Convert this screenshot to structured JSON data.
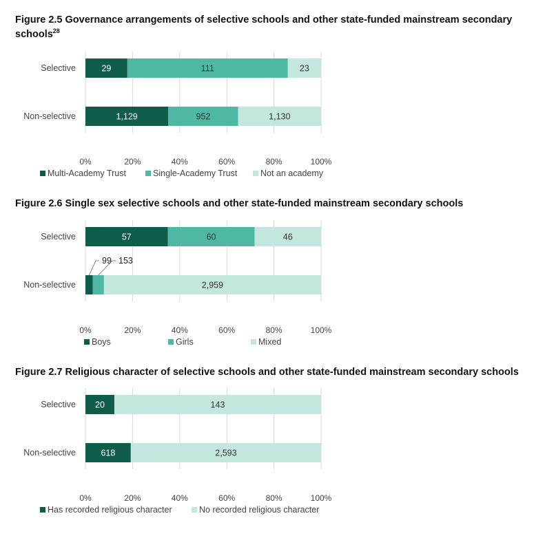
{
  "colors": {
    "dark": "#0f5c4b",
    "mid": "#4fb8a4",
    "light": "#c3e6df"
  },
  "figures": [
    {
      "title": "Figure 2.5 Governance arrangements of selective schools and other state-funded mainstream secondary schools",
      "title_sup": "28"
    },
    {
      "title": "Figure 2.6 Single sex selective schools and other state-funded mainstream secondary schools"
    },
    {
      "title": "Figure 2.7 Religious character of selective schools and other state-funded mainstream secondary schools"
    }
  ],
  "chart_data": [
    {
      "type": "bar",
      "orientation": "horizontal",
      "stacked": "percent",
      "categories": [
        "Selective",
        "Non-selective"
      ],
      "series": [
        {
          "name": "Multi-Academy Trust",
          "values": [
            29,
            1129
          ],
          "labels": [
            "29",
            "1,129"
          ],
          "color": "#0f5c4b"
        },
        {
          "name": "Single-Academy Trust",
          "values": [
            111,
            952
          ],
          "labels": [
            "111",
            "952"
          ],
          "color": "#4fb8a4"
        },
        {
          "name": "Not an academy",
          "values": [
            23,
            1130
          ],
          "labels": [
            "23",
            "1,130"
          ],
          "color": "#c3e6df"
        }
      ],
      "xticks": [
        "0%",
        "20%",
        "40%",
        "60%",
        "80%",
        "100%"
      ],
      "xlim": [
        0,
        100
      ],
      "legend": "bottom-left"
    },
    {
      "type": "bar",
      "orientation": "horizontal",
      "stacked": "percent",
      "categories": [
        "Selective",
        "Non-selective"
      ],
      "series": [
        {
          "name": "Boys",
          "values": [
            57,
            99
          ],
          "labels": [
            "57",
            "99"
          ],
          "color": "#0f5c4b"
        },
        {
          "name": "Girls",
          "values": [
            60,
            153
          ],
          "labels": [
            "60",
            "153"
          ],
          "color": "#4fb8a4"
        },
        {
          "name": "Mixed",
          "values": [
            46,
            2959
          ],
          "labels": [
            "46",
            "2,959"
          ],
          "color": "#c3e6df"
        }
      ],
      "xticks": [
        "0%",
        "20%",
        "40%",
        "60%",
        "80%",
        "100%"
      ],
      "xlim": [
        0,
        100
      ],
      "legend": "bottom"
    },
    {
      "type": "bar",
      "orientation": "horizontal",
      "stacked": "percent",
      "categories": [
        "Selective",
        "Non-selective"
      ],
      "series": [
        {
          "name": "Has recorded religious character",
          "values": [
            20,
            618
          ],
          "labels": [
            "20",
            "618"
          ],
          "color": "#0f5c4b"
        },
        {
          "name": "No recorded religious character",
          "values": [
            143,
            2593
          ],
          "labels": [
            "143",
            "2,593"
          ],
          "color": "#c3e6df"
        }
      ],
      "xticks": [
        "0%",
        "20%",
        "40%",
        "60%",
        "80%",
        "100%"
      ],
      "xlim": [
        0,
        100
      ],
      "legend": "bottom-left"
    }
  ]
}
